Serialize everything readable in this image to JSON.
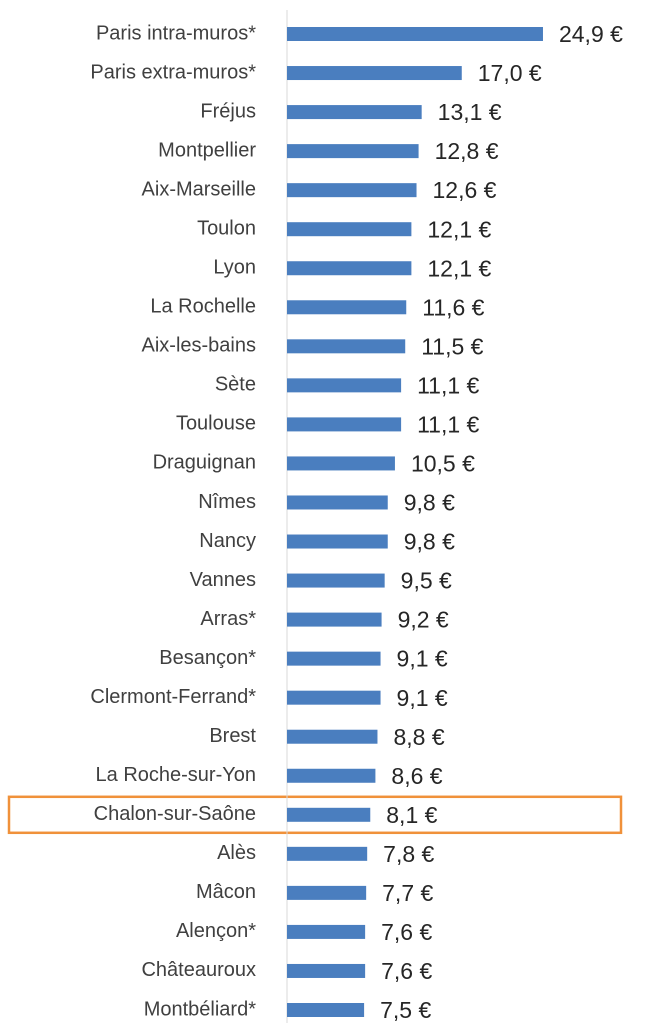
{
  "chart_data": {
    "type": "barh",
    "categories": [
      "Paris intra-muros*",
      "Paris extra-muros*",
      "Fréjus",
      "Montpellier",
      "Aix-Marseille",
      "Toulon",
      "Lyon",
      "La Rochelle",
      "Aix-les-bains",
      "Sète",
      "Toulouse",
      "Draguignan",
      "Nîmes",
      "Nancy",
      "Vannes",
      "Arras*",
      "Besançon*",
      "Clermont-Ferrand*",
      "Brest",
      "La Roche-sur-Yon",
      "Chalon-sur-Saône",
      "Alès",
      "Mâcon",
      "Alençon*",
      "Châteauroux",
      "Montbéliard*"
    ],
    "values": [
      24.9,
      17.0,
      13.1,
      12.8,
      12.6,
      12.1,
      12.1,
      11.6,
      11.5,
      11.1,
      11.1,
      10.5,
      9.8,
      9.8,
      9.5,
      9.2,
      9.1,
      9.1,
      8.8,
      8.6,
      8.1,
      7.8,
      7.7,
      7.6,
      7.6,
      7.5
    ],
    "value_labels": [
      "24,9 €",
      "17,0 €",
      "13,1 €",
      "12,8 €",
      "12,6 €",
      "12,1 €",
      "12,1 €",
      "11,6 €",
      "11,5 €",
      "11,1 €",
      "11,1 €",
      "10,5 €",
      "9,8 €",
      "9,8 €",
      "9,5 €",
      "9,2 €",
      "9,1 €",
      "9,1 €",
      "8,8 €",
      "8,6 €",
      "8,1 €",
      "7,8 €",
      "7,7 €",
      "7,6 €",
      "7,6 €",
      "7,5 €"
    ],
    "color": "#4a7ebf",
    "highlight_category": "Chalon-sur-Saône",
    "highlight_color": "#f0913a"
  }
}
